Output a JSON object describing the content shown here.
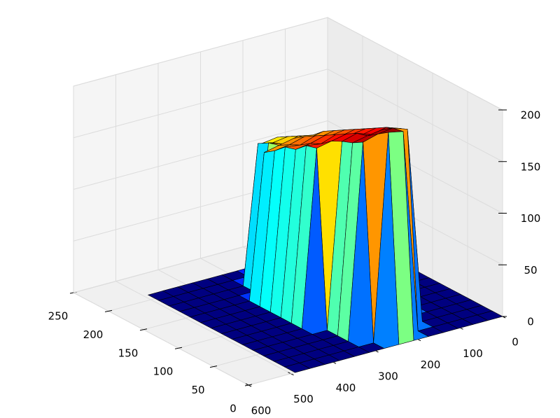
{
  "chart_data": {
    "type": "surface",
    "x": [
      0,
      35,
      70,
      105,
      140,
      175,
      210,
      245,
      280,
      315,
      350,
      385,
      420,
      455,
      490
    ],
    "y": [
      0,
      15,
      30,
      45,
      60,
      75,
      90,
      105,
      120,
      135,
      150,
      165,
      180,
      195,
      210
    ],
    "z": [
      [
        0,
        0,
        0,
        0,
        0,
        0,
        0,
        0,
        0,
        0,
        0,
        0,
        0,
        0,
        0
      ],
      [
        0,
        0,
        0,
        0,
        0,
        0,
        197,
        200,
        0,
        0,
        0,
        0,
        0,
        0,
        0
      ],
      [
        0,
        0,
        0,
        0,
        0,
        190,
        195,
        193,
        189,
        0,
        0,
        0,
        0,
        0,
        0
      ],
      [
        0,
        0,
        0,
        0,
        0,
        184,
        188,
        186,
        183,
        0,
        0,
        0,
        0,
        0,
        0
      ],
      [
        0,
        0,
        0,
        0,
        176,
        181,
        178,
        183,
        179,
        0,
        0,
        0,
        0,
        0,
        0
      ],
      [
        0,
        0,
        0,
        0,
        170,
        175,
        172,
        177,
        174,
        171,
        0,
        0,
        0,
        0,
        0
      ],
      [
        0,
        0,
        0,
        0,
        165,
        169,
        167,
        171,
        166,
        168,
        0,
        0,
        0,
        0,
        0
      ],
      [
        0,
        0,
        0,
        0,
        158,
        163,
        160,
        165,
        161,
        159,
        0,
        0,
        0,
        0,
        0
      ],
      [
        0,
        0,
        0,
        0,
        153,
        157,
        155,
        159,
        154,
        156,
        0,
        0,
        0,
        0,
        0
      ],
      [
        0,
        0,
        0,
        0,
        146,
        151,
        148,
        153,
        149,
        147,
        0,
        0,
        0,
        0,
        0
      ],
      [
        0,
        0,
        0,
        0,
        141,
        145,
        142,
        146,
        143,
        140,
        0,
        0,
        0,
        0,
        0
      ],
      [
        0,
        0,
        0,
        0,
        0,
        136,
        139,
        135,
        140,
        0,
        0,
        0,
        0,
        0,
        0
      ],
      [
        0,
        0,
        0,
        0,
        0,
        129,
        133,
        131,
        134,
        0,
        0,
        0,
        0,
        0,
        0
      ],
      [
        0,
        0,
        0,
        0,
        0,
        124,
        127,
        125,
        0,
        0,
        0,
        0,
        0,
        0,
        0
      ],
      [
        0,
        0,
        0,
        0,
        0,
        0,
        0,
        0,
        0,
        0,
        0,
        0,
        0,
        0,
        0
      ]
    ],
    "xlim": [
      0,
      600
    ],
    "ylim": [
      0,
      250
    ],
    "zlim": [
      0,
      200
    ],
    "xticks": [
      0,
      100,
      200,
      300,
      400,
      500,
      600
    ],
    "yticks": [
      0,
      50,
      100,
      150,
      200,
      250
    ],
    "zticks": [
      0,
      50,
      100,
      150,
      200
    ],
    "colormap": "jet",
    "grid": true
  }
}
